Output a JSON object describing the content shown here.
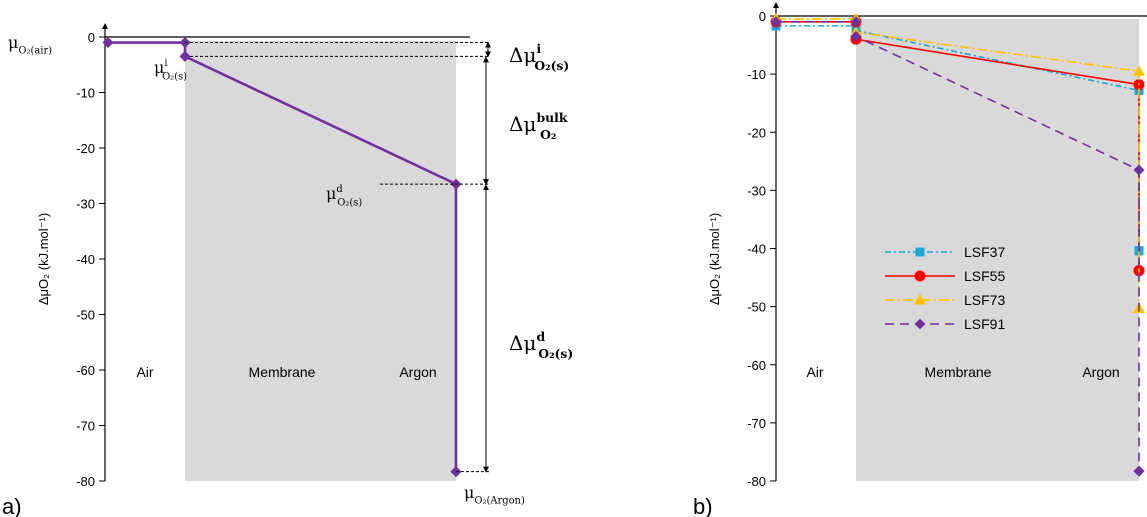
{
  "figure": {
    "panel_labels": [
      "a)",
      "b)"
    ]
  },
  "annotations_a": {
    "mu_air": {
      "base": "μ",
      "sub": "O₂(air)"
    },
    "mu_i": {
      "base": "μ",
      "sup": "i",
      "sub": "O₂(s)"
    },
    "mu_d": {
      "base": "μ",
      "sup": "d",
      "sub": "O₂(s)"
    },
    "mu_argon": {
      "base": "μ",
      "sub": "O₂(Argon)"
    },
    "delta_i": {
      "base": "Δμ",
      "sup": "i",
      "sub": "O₂(s)"
    },
    "delta_bulk": {
      "base": "Δμ",
      "sup": "bulk",
      "sub": "O₂"
    },
    "delta_d": {
      "base": "Δμ",
      "sup": "d",
      "sub": "O₂(s)"
    }
  },
  "chart_data": [
    {
      "type": "line",
      "panel": "a)",
      "ylabel": "ΔμO₂ (kJ.mol⁻¹)",
      "ylim": [
        -80,
        0
      ],
      "yticks": [
        0,
        -10,
        -20,
        -30,
        -40,
        -50,
        -60,
        -70,
        -80
      ],
      "ytick_labels": [
        "0",
        "-10",
        "-20",
        "-30",
        "-40",
        "-50",
        "-60",
        "-70",
        "-80"
      ],
      "regions": [
        {
          "label": "Air",
          "x": [
            0,
            1
          ],
          "shaded": false
        },
        {
          "label": "Membrane",
          "x": [
            1,
            3
          ],
          "shaded": true,
          "color": "#d9d9d9"
        },
        {
          "label": "Argon",
          "x": [
            3,
            4
          ],
          "shaded": false
        }
      ],
      "series": [
        {
          "color": "#7030a0",
          "marker": "diamond",
          "points": [
            [
              0,
              -1.0
            ],
            [
              1,
              -1.0
            ],
            [
              1,
              -3.5
            ],
            [
              3,
              -26.5
            ],
            [
              3,
              -78.3
            ],
            [
              4,
              -78.3
            ]
          ],
          "markers": [
            [
              0,
              -1.0
            ],
            [
              1,
              -1.0
            ],
            [
              1,
              -3.5
            ],
            [
              3,
              -26.5
            ],
            [
              3,
              -78.3
            ],
            [
              4,
              -78.3
            ]
          ]
        }
      ],
      "grid": false
    },
    {
      "type": "line",
      "panel": "b)",
      "ylabel": "ΔμO₂ (kJ.mol⁻¹)",
      "ylim": [
        -80,
        0
      ],
      "yticks": [
        0,
        -10,
        -20,
        -30,
        -40,
        -50,
        -60,
        -70,
        -80
      ],
      "ytick_labels": [
        "0",
        "-10",
        "-20",
        "-30",
        "-40",
        "-50",
        "-60",
        "-70",
        "-80"
      ],
      "regions": [
        {
          "label": "Air",
          "x": [
            0,
            1
          ],
          "shaded": false
        },
        {
          "label": "Membrane",
          "x": [
            1,
            3
          ],
          "shaded": true,
          "color": "#d9d9d9"
        },
        {
          "label": "Argon",
          "x": [
            3,
            4
          ],
          "shaded": false
        }
      ],
      "legend_position": "center-left inside",
      "series": [
        {
          "name": "LSF37",
          "color": "#1ea6d9",
          "marker": "square",
          "dash": "6 3 2 3",
          "points": [
            [
              0,
              -1.7
            ],
            [
              1,
              -1.7
            ],
            [
              1,
              -2.5
            ],
            [
              3,
              -12.8
            ],
            [
              3,
              -40.4
            ],
            [
              4,
              -40.4
            ]
          ],
          "markers": [
            [
              0,
              -1.7
            ],
            [
              1,
              -1.7
            ],
            [
              1,
              -2.5
            ],
            [
              3,
              -12.8
            ],
            [
              3,
              -40.4
            ],
            [
              4,
              -40.4
            ]
          ]
        },
        {
          "name": "LSF55",
          "color": "#ff0000",
          "marker": "circle",
          "dash": "",
          "points": [
            [
              0,
              -1.0
            ],
            [
              1,
              -1.0
            ],
            [
              1,
              -4.0
            ],
            [
              3,
              -11.8
            ],
            [
              3,
              -43.8
            ],
            [
              4,
              -43.8
            ]
          ],
          "markers": [
            [
              0,
              -1.0
            ],
            [
              1,
              -1.0
            ],
            [
              1,
              -4.0
            ],
            [
              3,
              -11.8
            ],
            [
              3,
              -43.8
            ],
            [
              4,
              -43.8
            ]
          ]
        },
        {
          "name": "LSF73",
          "color": "#ffc000",
          "marker": "triangle",
          "dash": "10 3 2 3",
          "points": [
            [
              0,
              -0.5
            ],
            [
              1,
              -0.5
            ],
            [
              1,
              -2.8
            ],
            [
              3,
              -9.5
            ],
            [
              3,
              -50.3
            ],
            [
              4,
              -50.3
            ]
          ],
          "markers": [
            [
              0,
              -0.5
            ],
            [
              1,
              -0.5
            ],
            [
              1,
              -2.8
            ],
            [
              3,
              -9.5
            ],
            [
              3,
              -50.3
            ],
            [
              4,
              -50.3
            ]
          ]
        },
        {
          "name": "LSF91",
          "color": "#7030a0",
          "marker": "diamond",
          "dash": "9 6",
          "points": [
            [
              0,
              -1.0
            ],
            [
              1,
              -1.0
            ],
            [
              1,
              -3.5
            ],
            [
              3,
              -26.5
            ],
            [
              3,
              -78.3
            ],
            [
              4,
              -78.3
            ]
          ],
          "markers": [
            [
              0,
              -1.0
            ],
            [
              1,
              -1.0
            ],
            [
              1,
              -3.5
            ],
            [
              3,
              -26.5
            ],
            [
              3,
              -78.3
            ],
            [
              4,
              -78.3
            ]
          ]
        }
      ],
      "grid": false
    }
  ]
}
